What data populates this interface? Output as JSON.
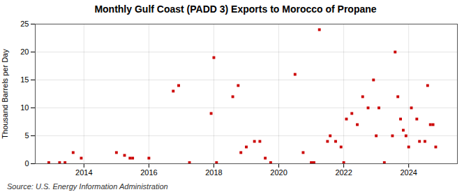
{
  "chart_data": {
    "type": "scatter",
    "title": "Monthly Gulf Coast (PADD 3) Exports to Morocco of Propane",
    "ylabel": "Thousand Barrels per Day",
    "source": "Source: U.S. Energy Information Administration",
    "color": "#cc0000",
    "marker": "square",
    "grid": true,
    "xlim": [
      2012.5,
      2025.5
    ],
    "xticks": [
      2014,
      2016,
      2018,
      2020,
      2022,
      2024
    ],
    "ylim": [
      0,
      25
    ],
    "yticks": [
      0,
      5,
      10,
      15,
      20,
      25
    ],
    "x": [
      2012.917,
      2013.25,
      2013.417,
      2013.667,
      2013.917,
      2015.0,
      2015.25,
      2015.417,
      2015.5,
      2016.0,
      2016.75,
      2016.917,
      2017.25,
      2017.917,
      2018.0,
      2018.083,
      2018.583,
      2018.75,
      2018.833,
      2019.0,
      2019.25,
      2019.417,
      2019.583,
      2019.75,
      2020.5,
      2020.75,
      2021.0,
      2021.083,
      2021.25,
      2021.5,
      2021.583,
      2021.75,
      2021.917,
      2022.0,
      2022.083,
      2022.25,
      2022.417,
      2022.583,
      2022.75,
      2022.917,
      2023.0,
      2023.083,
      2023.25,
      2023.5,
      2023.583,
      2023.667,
      2023.75,
      2023.833,
      2023.917,
      2024.0,
      2024.083,
      2024.25,
      2024.333,
      2024.5,
      2024.583,
      2024.667,
      2024.75,
      2024.833
    ],
    "values": [
      0.2,
      0.2,
      0.2,
      2.0,
      1.0,
      2.0,
      1.5,
      1.0,
      1.0,
      1.0,
      13.0,
      14.0,
      0.2,
      9.0,
      19.0,
      0.2,
      12.0,
      14.0,
      2.0,
      3.0,
      4.0,
      4.0,
      1.0,
      0.2,
      16.0,
      2.0,
      0.2,
      0.2,
      24.0,
      4.0,
      5.0,
      4.0,
      3.0,
      0.2,
      8.0,
      9.0,
      7.0,
      12.0,
      10.0,
      15.0,
      5.0,
      10.0,
      0.2,
      5.0,
      20.0,
      12.0,
      8.0,
      6.0,
      5.0,
      3.0,
      10.0,
      8.0,
      4.0,
      4.0,
      14.0,
      7.0,
      7.0,
      3.0
    ]
  }
}
